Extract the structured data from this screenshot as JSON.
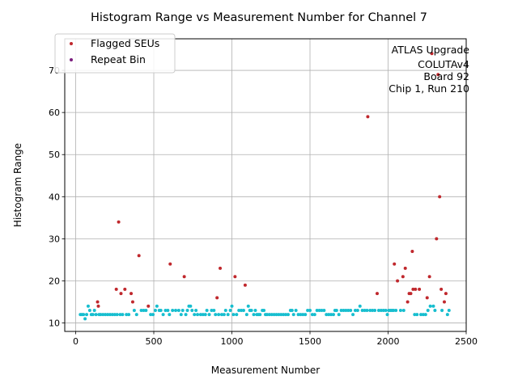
{
  "chart_data": {
    "type": "scatter",
    "title": "Histogram Range vs Measurement Number for Channel 7",
    "xlabel": "Measurement Number",
    "ylabel": "Histogram Range",
    "xlim": [
      -70,
      2500
    ],
    "ylim": [
      8,
      77.5
    ],
    "xticks": [
      0,
      500,
      1000,
      1500,
      2000,
      2500
    ],
    "yticks": [
      10,
      20,
      30,
      40,
      50,
      60,
      70
    ],
    "grid": true,
    "legend_position": "upper-left",
    "annotation": [
      "ATLAS Upgrade",
      "COLUTAv4",
      "Board 92",
      "Chip 1, Run 210"
    ],
    "series": [
      {
        "name": "Flagged SEUs",
        "color": "#c0282d",
        "points": [
          [
            140,
            15
          ],
          [
            145,
            14
          ],
          [
            260,
            18
          ],
          [
            275,
            34
          ],
          [
            290,
            17
          ],
          [
            315,
            18
          ],
          [
            355,
            17
          ],
          [
            365,
            15
          ],
          [
            405,
            26
          ],
          [
            465,
            14
          ],
          [
            605,
            24
          ],
          [
            695,
            21
          ],
          [
            905,
            16
          ],
          [
            925,
            23
          ],
          [
            1020,
            21
          ],
          [
            1085,
            19
          ],
          [
            1870,
            59
          ],
          [
            1930,
            17
          ],
          [
            2040,
            24
          ],
          [
            2060,
            20
          ],
          [
            2095,
            21
          ],
          [
            2110,
            23
          ],
          [
            2125,
            15
          ],
          [
            2135,
            17
          ],
          [
            2145,
            17
          ],
          [
            2155,
            27
          ],
          [
            2160,
            18
          ],
          [
            2175,
            18
          ],
          [
            2200,
            18
          ],
          [
            2250,
            16
          ],
          [
            2265,
            21
          ],
          [
            2280,
            74
          ],
          [
            2310,
            30
          ],
          [
            2320,
            69
          ],
          [
            2330,
            40
          ],
          [
            2340,
            18
          ],
          [
            2360,
            15
          ],
          [
            2370,
            17
          ]
        ]
      },
      {
        "name": "Repeat Bin",
        "color": "#7b1f7e",
        "points": []
      },
      {
        "name": "",
        "color": "#17becf",
        "points": [
          [
            30,
            12
          ],
          [
            40,
            12
          ],
          [
            50,
            12
          ],
          [
            60,
            11
          ],
          [
            70,
            12
          ],
          [
            80,
            14
          ],
          [
            90,
            13
          ],
          [
            100,
            12
          ],
          [
            110,
            12
          ],
          [
            120,
            13
          ],
          [
            130,
            12
          ],
          [
            150,
            12
          ],
          [
            160,
            12
          ],
          [
            175,
            12
          ],
          [
            190,
            12
          ],
          [
            205,
            12
          ],
          [
            220,
            12
          ],
          [
            235,
            12
          ],
          [
            250,
            12
          ],
          [
            265,
            12
          ],
          [
            285,
            12
          ],
          [
            300,
            12
          ],
          [
            325,
            12
          ],
          [
            340,
            12
          ],
          [
            375,
            13
          ],
          [
            390,
            12
          ],
          [
            420,
            13
          ],
          [
            435,
            13
          ],
          [
            450,
            13
          ],
          [
            480,
            12
          ],
          [
            495,
            12
          ],
          [
            510,
            13
          ],
          [
            520,
            14
          ],
          [
            535,
            13
          ],
          [
            545,
            13
          ],
          [
            560,
            12
          ],
          [
            575,
            13
          ],
          [
            590,
            13
          ],
          [
            600,
            12
          ],
          [
            620,
            13
          ],
          [
            640,
            13
          ],
          [
            660,
            13
          ],
          [
            675,
            12
          ],
          [
            685,
            13
          ],
          [
            705,
            12
          ],
          [
            715,
            13
          ],
          [
            725,
            14
          ],
          [
            735,
            14
          ],
          [
            745,
            13
          ],
          [
            760,
            12
          ],
          [
            770,
            13
          ],
          [
            780,
            12
          ],
          [
            800,
            12
          ],
          [
            815,
            12
          ],
          [
            830,
            12
          ],
          [
            840,
            13
          ],
          [
            855,
            12
          ],
          [
            870,
            13
          ],
          [
            885,
            13
          ],
          [
            895,
            12
          ],
          [
            915,
            12
          ],
          [
            935,
            12
          ],
          [
            950,
            12
          ],
          [
            960,
            13
          ],
          [
            975,
            12
          ],
          [
            990,
            13
          ],
          [
            1000,
            14
          ],
          [
            1010,
            12
          ],
          [
            1030,
            12
          ],
          [
            1045,
            13
          ],
          [
            1060,
            13
          ],
          [
            1075,
            13
          ],
          [
            1095,
            12
          ],
          [
            1105,
            14
          ],
          [
            1115,
            13
          ],
          [
            1125,
            13
          ],
          [
            1140,
            12
          ],
          [
            1150,
            13
          ],
          [
            1160,
            12
          ],
          [
            1170,
            12
          ],
          [
            1180,
            12
          ],
          [
            1195,
            13
          ],
          [
            1205,
            13
          ],
          [
            1215,
            12
          ],
          [
            1225,
            12
          ],
          [
            1240,
            12
          ],
          [
            1255,
            12
          ],
          [
            1270,
            12
          ],
          [
            1285,
            12
          ],
          [
            1300,
            12
          ],
          [
            1315,
            12
          ],
          [
            1330,
            12
          ],
          [
            1345,
            12
          ],
          [
            1360,
            12
          ],
          [
            1375,
            13
          ],
          [
            1385,
            13
          ],
          [
            1395,
            12
          ],
          [
            1410,
            13
          ],
          [
            1425,
            12
          ],
          [
            1440,
            12
          ],
          [
            1455,
            12
          ],
          [
            1470,
            12
          ],
          [
            1485,
            13
          ],
          [
            1500,
            13
          ],
          [
            1515,
            12
          ],
          [
            1530,
            12
          ],
          [
            1545,
            13
          ],
          [
            1560,
            13
          ],
          [
            1575,
            13
          ],
          [
            1590,
            13
          ],
          [
            1605,
            12
          ],
          [
            1620,
            12
          ],
          [
            1635,
            12
          ],
          [
            1650,
            12
          ],
          [
            1660,
            13
          ],
          [
            1670,
            13
          ],
          [
            1685,
            12
          ],
          [
            1700,
            13
          ],
          [
            1715,
            13
          ],
          [
            1730,
            13
          ],
          [
            1745,
            13
          ],
          [
            1760,
            13
          ],
          [
            1775,
            12
          ],
          [
            1790,
            13
          ],
          [
            1805,
            13
          ],
          [
            1820,
            14
          ],
          [
            1835,
            13
          ],
          [
            1850,
            13
          ],
          [
            1865,
            13
          ],
          [
            1885,
            13
          ],
          [
            1900,
            13
          ],
          [
            1915,
            13
          ],
          [
            1940,
            13
          ],
          [
            1955,
            13
          ],
          [
            1970,
            13
          ],
          [
            1985,
            13
          ],
          [
            1995,
            12
          ],
          [
            2005,
            13
          ],
          [
            2015,
            13
          ],
          [
            2025,
            13
          ],
          [
            2035,
            13
          ],
          [
            2050,
            13
          ],
          [
            2080,
            13
          ],
          [
            2100,
            13
          ],
          [
            2170,
            12
          ],
          [
            2185,
            12
          ],
          [
            2210,
            12
          ],
          [
            2225,
            12
          ],
          [
            2240,
            12
          ],
          [
            2255,
            13
          ],
          [
            2270,
            14
          ],
          [
            2290,
            14
          ],
          [
            2300,
            13
          ],
          [
            2345,
            13
          ],
          [
            2380,
            12
          ],
          [
            2390,
            13
          ]
        ]
      }
    ]
  }
}
